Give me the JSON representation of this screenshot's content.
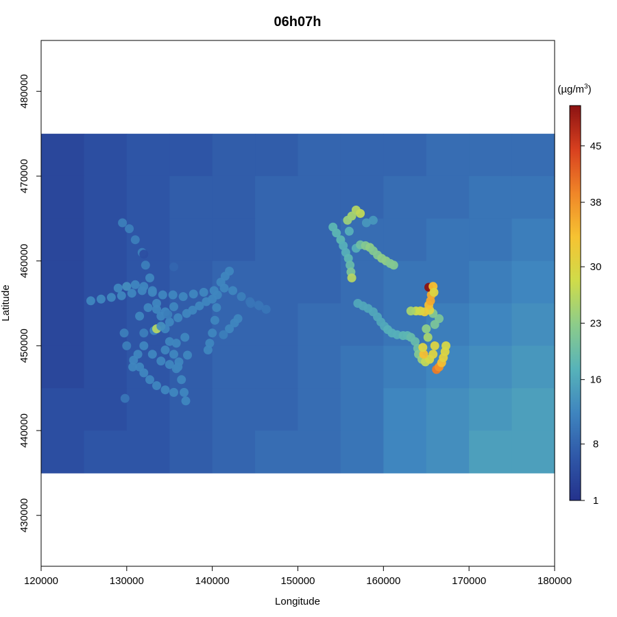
{
  "chart_data": {
    "type": "scatter",
    "title": "06h07h",
    "xlabel": "Longitude",
    "ylabel": "Latitude",
    "xlim": [
      120000,
      180000
    ],
    "ylim": [
      424000,
      486000
    ],
    "raster_extent": {
      "x": [
        120000,
        180000
      ],
      "y": [
        435000,
        475000
      ]
    },
    "x_ticks": [
      120000,
      130000,
      140000,
      150000,
      160000,
      170000,
      180000
    ],
    "y_ticks": [
      430000,
      440000,
      450000,
      460000,
      470000,
      480000
    ],
    "colorbar": {
      "unit_label": "(µg/m³)",
      "unit_text": "(µg/m",
      "unit_sup": "3",
      "unit_close": ")",
      "range": [
        1,
        50
      ],
      "ticks": [
        1,
        8,
        16,
        23,
        30,
        38,
        45
      ],
      "colors": [
        "#24328c",
        "#2f58a8",
        "#3f85bf",
        "#57b3b9",
        "#8ccc8a",
        "#cfdc4a",
        "#f6c332",
        "#f08628",
        "#d8401f",
        "#8b1212"
      ]
    },
    "background_raster": {
      "description_free": true,
      "cols": 12,
      "rows": 8,
      "values": [
        [
          4,
          5,
          6,
          6,
          7,
          7,
          8,
          8,
          8,
          9,
          9,
          9
        ],
        [
          4,
          5,
          6,
          7,
          7,
          8,
          8,
          8,
          9,
          9,
          10,
          10
        ],
        [
          4,
          5,
          6,
          7,
          7,
          8,
          8,
          9,
          9,
          10,
          10,
          11
        ],
        [
          4,
          5,
          6,
          7,
          8,
          8,
          8,
          9,
          10,
          10,
          11,
          12
        ],
        [
          4,
          5,
          6,
          7,
          8,
          8,
          9,
          9,
          10,
          11,
          12,
          13
        ],
        [
          4,
          5,
          6,
          7,
          8,
          8,
          9,
          10,
          11,
          12,
          13,
          14
        ],
        [
          5,
          5,
          6,
          7,
          8,
          8,
          9,
          10,
          12,
          13,
          14,
          15
        ],
        [
          5,
          6,
          6,
          7,
          8,
          9,
          9,
          10,
          12,
          13,
          15,
          15
        ]
      ]
    },
    "series": [
      {
        "points": [
          [
            129500,
            464500,
            11
          ],
          [
            130300,
            463800,
            11
          ],
          [
            131000,
            462500,
            11
          ],
          [
            131800,
            461000,
            11
          ],
          [
            132200,
            459500,
            11
          ],
          [
            132700,
            458000,
            12
          ],
          [
            133000,
            456500,
            12
          ],
          [
            133500,
            455000,
            12
          ],
          [
            134000,
            453500,
            12
          ],
          [
            134500,
            452000,
            12
          ],
          [
            135000,
            450500,
            12
          ],
          [
            135500,
            449000,
            12
          ],
          [
            136000,
            447500,
            12
          ],
          [
            136400,
            446000,
            12
          ],
          [
            136700,
            444500,
            12
          ],
          [
            136900,
            443500,
            12
          ],
          [
            125800,
            455300,
            12
          ],
          [
            127000,
            455500,
            12
          ],
          [
            128200,
            455700,
            12
          ],
          [
            129400,
            455900,
            12
          ],
          [
            130600,
            456200,
            12
          ],
          [
            131800,
            456500,
            12
          ],
          [
            133000,
            456300,
            12
          ],
          [
            134200,
            456000,
            12
          ],
          [
            135400,
            456000,
            12
          ],
          [
            136600,
            455800,
            12
          ],
          [
            137800,
            456100,
            12
          ],
          [
            139000,
            456300,
            12
          ],
          [
            140200,
            456500,
            12
          ],
          [
            141400,
            456800,
            12
          ],
          [
            142400,
            456500,
            12
          ],
          [
            143400,
            455800,
            11
          ],
          [
            144400,
            455200,
            10
          ],
          [
            145500,
            454700,
            10
          ],
          [
            146300,
            454300,
            10
          ],
          [
            129000,
            456800,
            12
          ],
          [
            130000,
            457000,
            13
          ],
          [
            131000,
            457200,
            12
          ],
          [
            132000,
            457000,
            12
          ],
          [
            133200,
            451800,
            12
          ],
          [
            133500,
            452000,
            26
          ],
          [
            134000,
            452300,
            13
          ],
          [
            135000,
            452800,
            12
          ],
          [
            136000,
            453300,
            12
          ],
          [
            137000,
            453800,
            12
          ],
          [
            137700,
            454200,
            12
          ],
          [
            138500,
            454700,
            12
          ],
          [
            139300,
            455200,
            12
          ],
          [
            140000,
            455500,
            12
          ],
          [
            140600,
            456000,
            12
          ],
          [
            141000,
            457500,
            12
          ],
          [
            141500,
            458200,
            12
          ],
          [
            142000,
            458800,
            12
          ],
          [
            140500,
            454500,
            12
          ],
          [
            140300,
            453000,
            12
          ],
          [
            140000,
            451500,
            12
          ],
          [
            139700,
            450300,
            12
          ],
          [
            139500,
            449500,
            12
          ],
          [
            143000,
            453200,
            12
          ],
          [
            142600,
            452700,
            12
          ],
          [
            142000,
            452000,
            12
          ],
          [
            141300,
            451300,
            11
          ],
          [
            130800,
            448300,
            12
          ],
          [
            131500,
            447500,
            12
          ],
          [
            132000,
            446800,
            12
          ],
          [
            132700,
            446000,
            12
          ],
          [
            133500,
            445300,
            12
          ],
          [
            134500,
            444800,
            12
          ],
          [
            135500,
            444500,
            12
          ],
          [
            130700,
            447500,
            12
          ],
          [
            131300,
            449000,
            12
          ],
          [
            132000,
            450000,
            12
          ],
          [
            133000,
            449000,
            12
          ],
          [
            134000,
            448200,
            12
          ],
          [
            135000,
            447800,
            12
          ],
          [
            135800,
            447300,
            12
          ],
          [
            134500,
            449500,
            12
          ],
          [
            135800,
            450300,
            12
          ],
          [
            136800,
            451000,
            12
          ],
          [
            132000,
            451500,
            11
          ],
          [
            131500,
            453500,
            12
          ],
          [
            132500,
            454500,
            12
          ],
          [
            133500,
            454300,
            12
          ],
          [
            134500,
            454000,
            12
          ],
          [
            135500,
            454600,
            12
          ],
          [
            129700,
            451500,
            11
          ],
          [
            130000,
            450000,
            11
          ],
          [
            129800,
            443800,
            10
          ],
          [
            132000,
            460800,
            5
          ],
          [
            135500,
            459300,
            8
          ],
          [
            144500,
            455000,
            10
          ],
          [
            145400,
            454800,
            10
          ],
          [
            134800,
            453700,
            11
          ],
          [
            136100,
            448100,
            12
          ],
          [
            137100,
            448900,
            12
          ]
        ]
      },
      {
        "points": [
          [
            156800,
            466000,
            26
          ],
          [
            156300,
            465300,
            25
          ],
          [
            155800,
            464800,
            24
          ],
          [
            157300,
            465600,
            27
          ],
          [
            154100,
            464000,
            18
          ],
          [
            154500,
            463300,
            18
          ],
          [
            155000,
            462500,
            18
          ],
          [
            155300,
            461800,
            17
          ],
          [
            155600,
            461000,
            17
          ],
          [
            155900,
            460300,
            18
          ],
          [
            156100,
            459500,
            19
          ],
          [
            156200,
            458700,
            21
          ],
          [
            156300,
            458000,
            26
          ],
          [
            156000,
            463500,
            17
          ],
          [
            156800,
            461500,
            17
          ],
          [
            157300,
            461900,
            20
          ],
          [
            157900,
            461800,
            22
          ],
          [
            158400,
            461600,
            23
          ],
          [
            158800,
            461200,
            22
          ],
          [
            159300,
            460700,
            22
          ],
          [
            159800,
            460300,
            23
          ],
          [
            160300,
            460000,
            23
          ],
          [
            160800,
            459700,
            22
          ],
          [
            161200,
            459500,
            22
          ],
          [
            158000,
            464500,
            14
          ],
          [
            158800,
            464800,
            14
          ],
          [
            157000,
            455000,
            16
          ],
          [
            157600,
            454700,
            16
          ],
          [
            158200,
            454400,
            16
          ],
          [
            158800,
            454000,
            16
          ],
          [
            159300,
            453400,
            16
          ],
          [
            159700,
            452800,
            16
          ],
          [
            160100,
            452300,
            16
          ],
          [
            160500,
            451900,
            17
          ],
          [
            161000,
            451500,
            17
          ],
          [
            161600,
            451300,
            17
          ],
          [
            162300,
            451200,
            18
          ],
          [
            162800,
            451200,
            18
          ],
          [
            163200,
            451000,
            19
          ],
          [
            163700,
            450500,
            19
          ],
          [
            164000,
            449700,
            20
          ],
          [
            164100,
            449000,
            22
          ],
          [
            164500,
            448400,
            24
          ],
          [
            164900,
            448100,
            27
          ],
          [
            165400,
            448400,
            29
          ],
          [
            165800,
            449000,
            30
          ],
          [
            166000,
            450000,
            30
          ],
          [
            165200,
            451000,
            25
          ],
          [
            165000,
            452000,
            23
          ],
          [
            166000,
            452500,
            21
          ],
          [
            166500,
            453200,
            21
          ],
          [
            165800,
            453800,
            22
          ],
          [
            165400,
            454200,
            30
          ],
          [
            165300,
            454800,
            34
          ],
          [
            165500,
            455300,
            36
          ],
          [
            165600,
            456000,
            36
          ],
          [
            165700,
            456700,
            32
          ],
          [
            165300,
            456900,
            50
          ],
          [
            165800,
            457000,
            34
          ],
          [
            165900,
            456300,
            30
          ],
          [
            164800,
            454000,
            32
          ],
          [
            164300,
            454100,
            30
          ],
          [
            163800,
            454100,
            28
          ],
          [
            163200,
            454100,
            25
          ],
          [
            166200,
            447200,
            40
          ],
          [
            166500,
            447500,
            38
          ],
          [
            166800,
            448000,
            34
          ],
          [
            167000,
            448600,
            31
          ],
          [
            167200,
            449300,
            30
          ],
          [
            167300,
            450000,
            29
          ],
          [
            164700,
            449000,
            34
          ],
          [
            164600,
            449800,
            30
          ]
        ]
      }
    ]
  }
}
